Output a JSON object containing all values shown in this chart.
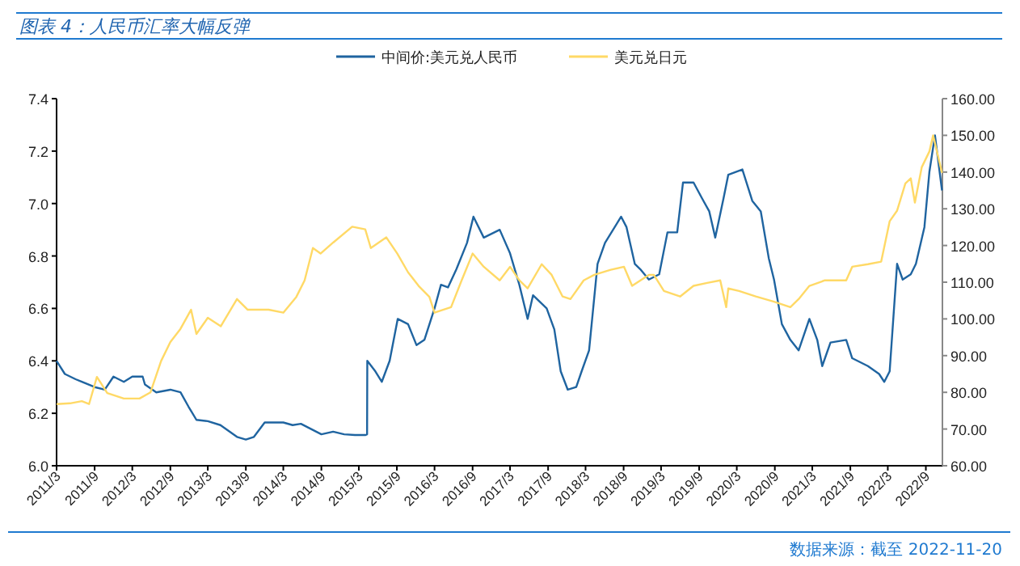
{
  "chart_data": {
    "type": "line",
    "title": "图表 4：人民币汇率大幅反弹",
    "legend": "top",
    "xlim": [
      "2011-03-01",
      "2022-11-20"
    ],
    "xticks": [
      {
        "value": "2011-03",
        "label": "2011/3"
      },
      {
        "value": "2011-09",
        "label": "2011/9"
      },
      {
        "value": "2012-03",
        "label": "2012/3"
      },
      {
        "value": "2012-09",
        "label": "2012/9"
      },
      {
        "value": "2013-03",
        "label": "2013/3"
      },
      {
        "value": "2013-09",
        "label": "2013/9"
      },
      {
        "value": "2014-03",
        "label": "2014/3"
      },
      {
        "value": "2014-09",
        "label": "2014/9"
      },
      {
        "value": "2015-03",
        "label": "2015/3"
      },
      {
        "value": "2015-09",
        "label": "2015/9"
      },
      {
        "value": "2016-03",
        "label": "2016/3"
      },
      {
        "value": "2016-09",
        "label": "2016/9"
      },
      {
        "value": "2017-03",
        "label": "2017/3"
      },
      {
        "value": "2017-09",
        "label": "2017/9"
      },
      {
        "value": "2018-03",
        "label": "2018/3"
      },
      {
        "value": "2018-09",
        "label": "2018/9"
      },
      {
        "value": "2019-03",
        "label": "2019/3"
      },
      {
        "value": "2019-09",
        "label": "2019/9"
      },
      {
        "value": "2020-03",
        "label": "2020/3"
      },
      {
        "value": "2020-09",
        "label": "2020/9"
      },
      {
        "value": "2021-03",
        "label": "2021/3"
      },
      {
        "value": "2021-09",
        "label": "2021/9"
      },
      {
        "value": "2022-03",
        "label": "2022/3"
      },
      {
        "value": "2022-09",
        "label": "2022/9"
      }
    ],
    "ylim": [
      6.0,
      7.4
    ],
    "yticks": [
      {
        "value": 6.0,
        "label": "6.0"
      },
      {
        "value": 6.2,
        "label": "6.2"
      },
      {
        "value": 6.4,
        "label": "6.4"
      },
      {
        "value": 6.6,
        "label": "6.6"
      },
      {
        "value": 6.8,
        "label": "6.8"
      },
      {
        "value": 7.0,
        "label": "7.0"
      },
      {
        "value": 7.2,
        "label": "7.2"
      },
      {
        "value": 7.4,
        "label": "7.4"
      }
    ],
    "y2lim": [
      60,
      160
    ],
    "y2ticks": [
      {
        "value": 60,
        "label": "60.00"
      },
      {
        "value": 70,
        "label": "70.00"
      },
      {
        "value": 80,
        "label": "80.00"
      },
      {
        "value": 90,
        "label": "90.00"
      },
      {
        "value": 100,
        "label": "100.00"
      },
      {
        "value": 110,
        "label": "110.00"
      },
      {
        "value": 120,
        "label": "120.00"
      },
      {
        "value": 130,
        "label": "130.00"
      },
      {
        "value": 140,
        "label": "140.00"
      },
      {
        "value": 150,
        "label": "150.00"
      },
      {
        "value": 160,
        "label": "160.00"
      }
    ],
    "series": [
      {
        "name": "中间价:美元兑人民币",
        "color": "#1f64a0",
        "x": [
          "2011-03-01",
          "2011-04-10",
          "2011-06-01",
          "2011-07-01",
          "2011-09-01",
          "2011-10-20",
          "2011-12-01",
          "2012-01-20",
          "2012-03-01",
          "2012-04-20",
          "2012-05-01",
          "2012-06-25",
          "2012-09-01",
          "2012-10-20",
          "2012-11-28",
          "2013-01-05",
          "2013-03-01",
          "2013-05-01",
          "2013-07-20",
          "2013-09-01",
          "2013-10-10",
          "2013-12-01",
          "2014-03-01",
          "2014-04-15",
          "2014-05-25",
          "2014-09-01",
          "2014-10-28",
          "2014-12-20",
          "2015-02-10",
          "2015-04-01",
          "2015-04-10",
          "2015-04-11",
          "2015-05-20",
          "2015-06-20",
          "2015-07-28",
          "2015-09-05",
          "2015-10-25",
          "2015-12-05",
          "2016-01-12",
          "2016-03-01",
          "2016-04-01",
          "2016-05-05",
          "2016-06-15",
          "2016-08-05",
          "2016-09-05",
          "2016-10-25",
          "2017-01-10",
          "2017-03-01",
          "2017-04-15",
          "2017-05-25",
          "2017-06-20",
          "2017-08-25",
          "2017-10-01",
          "2017-11-01",
          "2017-12-05",
          "2018-01-15",
          "2018-02-10",
          "2018-03-18",
          "2018-04-28",
          "2018-06-03",
          "2018-08-20",
          "2018-09-15",
          "2018-10-25",
          "2018-11-20",
          "2019-01-01",
          "2019-02-20",
          "2019-04-01",
          "2019-05-18",
          "2019-06-15",
          "2019-08-05",
          "2019-09-15",
          "2019-10-20",
          "2019-11-18",
          "2019-12-28",
          "2020-01-20",
          "2020-03-28",
          "2020-05-15",
          "2020-06-25",
          "2020-08-03",
          "2020-08-28",
          "2020-10-05",
          "2020-11-15",
          "2020-12-25",
          "2021-02-15",
          "2021-03-25",
          "2021-04-18",
          "2021-05-28",
          "2021-08-12",
          "2021-09-10",
          "2021-11-25",
          "2022-01-18",
          "2022-02-12",
          "2022-03-10",
          "2022-04-15",
          "2022-05-12",
          "2022-06-20",
          "2022-07-15",
          "2022-08-25",
          "2022-09-18",
          "2022-10-15",
          "2022-11-18"
        ],
        "values": [
          6.4,
          6.35,
          6.33,
          6.32,
          6.3,
          6.29,
          6.34,
          6.32,
          6.34,
          6.34,
          6.31,
          6.28,
          6.29,
          6.28,
          6.225,
          6.175,
          6.17,
          6.155,
          6.11,
          6.1,
          6.11,
          6.165,
          6.165,
          6.155,
          6.16,
          6.12,
          6.13,
          6.12,
          6.117,
          6.117,
          6.12,
          6.4,
          6.36,
          6.32,
          6.4,
          6.56,
          6.54,
          6.46,
          6.48,
          6.6,
          6.69,
          6.68,
          6.75,
          6.85,
          6.95,
          6.87,
          6.9,
          6.81,
          6.69,
          6.56,
          6.65,
          6.6,
          6.52,
          6.36,
          6.29,
          6.3,
          6.36,
          6.44,
          6.77,
          6.85,
          6.95,
          6.91,
          6.77,
          6.75,
          6.71,
          6.73,
          6.89,
          6.89,
          7.08,
          7.08,
          7.02,
          6.97,
          6.87,
          7.02,
          7.11,
          7.13,
          7.01,
          6.97,
          6.79,
          6.71,
          6.54,
          6.48,
          6.44,
          6.56,
          6.48,
          6.38,
          6.47,
          6.48,
          6.41,
          6.38,
          6.35,
          6.32,
          6.36,
          6.77,
          6.71,
          6.73,
          6.77,
          6.91,
          7.12,
          7.26,
          7.05
        ]
      },
      {
        "name": "美元兑日元",
        "color": "#ffd966",
        "axis": "y2",
        "x": [
          "2011-03-01",
          "2011-05-05",
          "2011-07-01",
          "2011-08-05",
          "2011-09-12",
          "2011-11-01",
          "2012-01-20",
          "2012-04-05",
          "2012-05-28",
          "2012-07-18",
          "2012-09-01",
          "2012-10-20",
          "2012-12-10",
          "2013-01-05",
          "2013-03-01",
          "2013-05-03",
          "2013-07-20",
          "2013-09-10",
          "2013-12-20",
          "2014-03-01",
          "2014-05-03",
          "2014-06-12",
          "2014-07-22",
          "2014-08-28",
          "2014-10-28",
          "2015-01-28",
          "2015-04-01",
          "2015-04-28",
          "2015-07-12",
          "2015-09-03",
          "2015-10-25",
          "2015-12-15",
          "2016-02-05",
          "2016-03-01",
          "2016-05-20",
          "2016-07-10",
          "2016-09-01",
          "2016-10-25",
          "2017-01-10",
          "2017-03-01",
          "2017-04-15",
          "2017-05-25",
          "2017-08-01",
          "2017-09-18",
          "2017-11-10",
          "2017-12-18",
          "2018-02-20",
          "2018-04-12",
          "2018-07-01",
          "2018-09-03",
          "2018-10-12",
          "2019-01-01",
          "2019-01-25",
          "2019-03-15",
          "2019-06-01",
          "2019-08-05",
          "2019-10-10",
          "2019-12-12",
          "2020-01-10",
          "2020-01-20",
          "2020-03-12",
          "2020-06-01",
          "2020-08-28",
          "2020-11-15",
          "2020-12-25",
          "2021-02-15",
          "2021-05-01",
          "2021-08-12",
          "2021-09-10",
          "2021-11-25",
          "2022-01-28",
          "2022-03-10",
          "2022-04-15",
          "2022-05-25",
          "2022-06-20",
          "2022-07-10",
          "2022-08-12",
          "2022-09-18",
          "2022-10-06",
          "2022-11-18"
        ],
        "values": [
          76.8,
          77,
          77.6,
          76.8,
          84.2,
          79.8,
          78.3,
          78.3,
          80,
          88.5,
          93.7,
          97.3,
          102.5,
          95.9,
          100.3,
          98,
          105.4,
          102.5,
          102.5,
          101.7,
          106,
          110.5,
          119.3,
          117.8,
          120.8,
          125.1,
          124.4,
          119.3,
          122.2,
          117.8,
          112.7,
          109,
          106,
          101.7,
          103.2,
          110.5,
          117.8,
          114.2,
          110.5,
          114.2,
          110.5,
          108.3,
          114.9,
          112,
          106.1,
          105.4,
          110.5,
          112,
          113.4,
          114.2,
          109,
          112,
          112,
          107.6,
          106.1,
          109,
          109.8,
          110.5,
          103.2,
          108.3,
          107.6,
          106.1,
          104.7,
          103.2,
          105.4,
          109,
          110.5,
          110.5,
          114.2,
          114.9,
          115.6,
          126.6,
          129.5,
          136.9,
          138.3,
          131.7,
          141.3,
          145.6,
          150,
          139.8
        ]
      }
    ],
    "annotations": [
      "数据来源：截至 2022-11-20"
    ]
  }
}
